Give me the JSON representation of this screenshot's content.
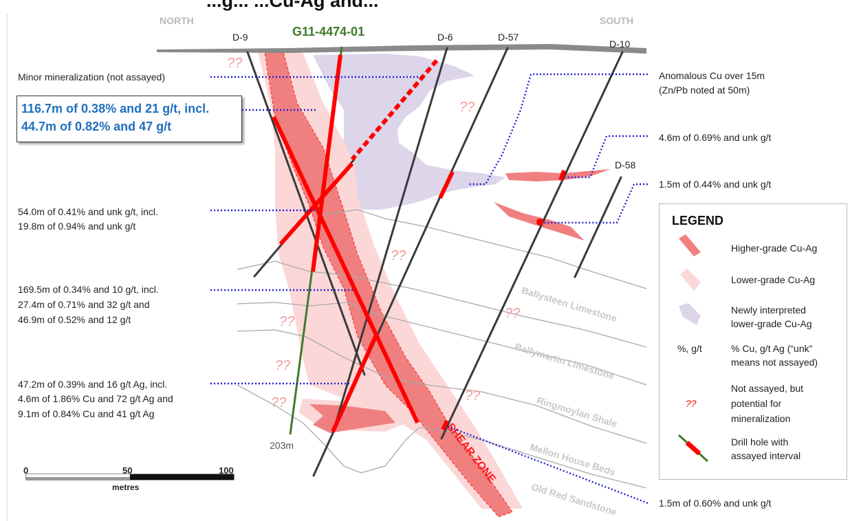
{
  "title": "...g... ...Cu-Ag and...",
  "compass": {
    "north": "NORTH",
    "south": "SOUTH"
  },
  "holes": {
    "d9": "D-9",
    "g11": "G11-4474-01",
    "d6": "D-6",
    "d57": "D-57",
    "d10": "D-10",
    "d58": "D-58",
    "g11_depth": "203m"
  },
  "annotations": {
    "minor": "Minor mineralization (not assayed)",
    "highlight_line1": "116.7m of 0.38% and 21 g/t, incl.",
    "highlight_line2": "44.7m of 0.82% and 47 g/t",
    "d9_line1": "54.0m of 0.41% and unk g/t, incl.",
    "d9_line2": "19.8m of 0.94% and unk g/t",
    "d6_line1": "169.5m of 0.34% and 10 g/t, incl.",
    "d6_line2": "27.4m of 0.71% and 32 g/t and",
    "d6_line3": "46.9m of 0.52% and 12 g/t",
    "d57_line1": "47.2m of 0.39% and 16 g/t Ag, incl.",
    "d57_line2": "4.6m of 1.86% Cu and 72 g/t Ag and",
    "d57_line3": "9.1m of 0.84% Cu and 41 g/t Ag",
    "anom_line1": "Anomalous Cu over 15m",
    "anom_line2": "(Zn/Pb noted at 50m)",
    "r1": "4.6m of 0.69% and unk g/t",
    "r2": "1.5m of 0.44% and unk g/t",
    "r3": "1.5m of 0.60% and unk g/t"
  },
  "formations": {
    "ballysteen": "Ballysteen Limestone",
    "ballymartin": "Ballymartin Limestone",
    "ringmoylan": "Ringmoylan Shale",
    "mellon": "Mellon House Beds",
    "oldred": "Old Red Sandstone",
    "shear": "SHEAR ZONE"
  },
  "unassayed_marker": "??",
  "scale": {
    "t0": "0",
    "t50": "50",
    "t100": "100",
    "unit": "metres"
  },
  "legend": {
    "title": "LEGEND",
    "higher": "Higher-grade Cu-Ag",
    "lower": "Lower-grade Cu-Ag",
    "newly_1": "Newly interpreted",
    "newly_2": "lower-grade Cu-Ag",
    "units_sym": "%, g/t",
    "units_1": "% Cu, g/t Ag (“unk”",
    "units_2": "means not assayed)",
    "na_sym": "??",
    "na_1": "Not assayed, but",
    "na_2": "potential for",
    "na_3": "mineralization",
    "drill_1": "Drill hole with",
    "drill_2": "assayed interval"
  },
  "colors": {
    "higher_grade": "#f08080",
    "lower_grade": "#fcd7d7",
    "newly_interpreted": "#ddd5ea",
    "assayed": "#ff0000",
    "hole": "#3a3a3a",
    "new_hole": "#3f7a2c",
    "callout_text": "#1f6fbf",
    "leader": "#1f1fd0",
    "formation_label": "#c8c8c8"
  }
}
